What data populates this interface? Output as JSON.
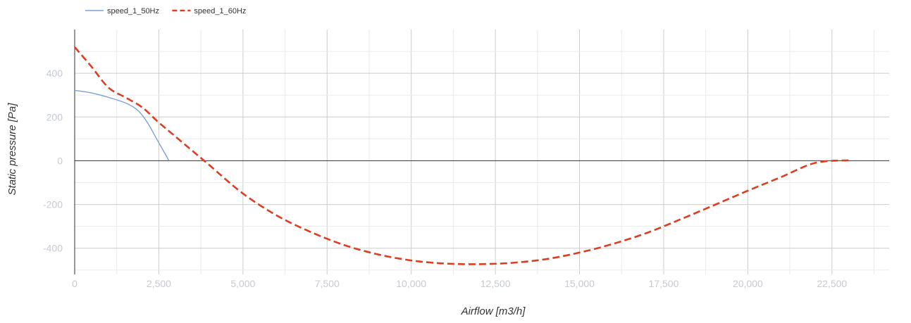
{
  "chart_data": {
    "type": "line",
    "xlabel": "Airflow [m3/h]",
    "ylabel": "Static pressure [Pa]",
    "xlim": [
      0,
      24200
    ],
    "ylim": [
      -520,
      600
    ],
    "x_ticks": [
      0,
      2500,
      5000,
      7500,
      10000,
      12500,
      15000,
      17500,
      20000,
      22500
    ],
    "x_tick_labels": [
      "0",
      "2,500",
      "5,000",
      "7,500",
      "10,000",
      "12,500",
      "15,000",
      "17,500",
      "20,000",
      "22,500"
    ],
    "y_ticks": [
      -400,
      -200,
      0,
      200,
      400
    ],
    "y_tick_labels": [
      "-400",
      "-200",
      "0",
      "200",
      "400"
    ],
    "grid": true,
    "legend_position": "top-left",
    "series": [
      {
        "name": "speed_1_50Hz",
        "color": "#7aa0d8",
        "style": "solid",
        "x": [
          0,
          500,
          1000,
          1500,
          1800,
          2000,
          2200,
          2400,
          2600,
          2800
        ],
        "y": [
          322,
          310,
          290,
          265,
          240,
          210,
          165,
          110,
          55,
          0
        ]
      },
      {
        "name": "speed_1_60Hz",
        "color": "#dc3e22",
        "style": "dashed",
        "x": [
          0,
          500,
          1000,
          1500,
          2000,
          2500,
          3000,
          3500,
          4000,
          5000,
          6000,
          7000,
          8000,
          9000,
          10000,
          11000,
          12000,
          13000,
          14000,
          15000,
          16000,
          17000,
          18000,
          19000,
          20000,
          21000,
          22000,
          23000
        ],
        "y": [
          520,
          430,
          335,
          290,
          245,
          175,
          110,
          45,
          -20,
          -150,
          -250,
          -325,
          -385,
          -428,
          -456,
          -470,
          -473,
          -467,
          -450,
          -420,
          -380,
          -330,
          -268,
          -203,
          -137,
          -74,
          -10,
          2
        ]
      }
    ]
  }
}
